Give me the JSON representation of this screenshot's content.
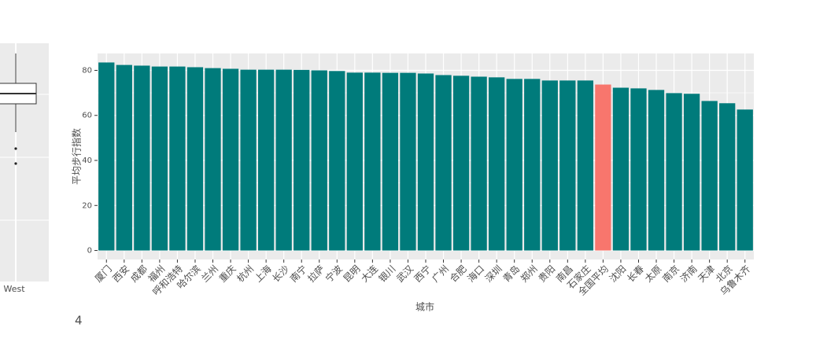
{
  "chart_data": {
    "type": "bar",
    "y_label": "平均步行指数",
    "x_label": "城市",
    "categories": [
      "厦门",
      "西安",
      "成都",
      "福州",
      "呼和浩特",
      "哈尔滨",
      "兰州",
      "重庆",
      "杭州",
      "上海",
      "长沙",
      "南宁",
      "拉萨",
      "宁波",
      "昆明",
      "大连",
      "银川",
      "武汉",
      "西宁",
      "广州",
      "合肥",
      "海口",
      "深圳",
      "青岛",
      "郑州",
      "贵阳",
      "南昌",
      "石家庄",
      "全国平均",
      "沈阳",
      "长春",
      "太原",
      "南京",
      "济南",
      "天津",
      "北京",
      "乌鲁木齐"
    ],
    "values": [
      83.5,
      82.4,
      82.1,
      81.7,
      81.7,
      81.4,
      81.0,
      80.7,
      80.3,
      80.3,
      80.3,
      80.2,
      80.0,
      79.7,
      79.0,
      79.0,
      78.9,
      78.9,
      78.6,
      77.9,
      77.6,
      77.2,
      76.9,
      76.2,
      76.2,
      75.5,
      75.5,
      75.5,
      73.7,
      72.3,
      72.0,
      71.3,
      69.9,
      69.6,
      66.4,
      65.4,
      62.6
    ],
    "colors": [
      "#007b7b",
      "#007b7b",
      "#007b7b",
      "#007b7b",
      "#007b7b",
      "#007b7b",
      "#007b7b",
      "#007b7b",
      "#007b7b",
      "#007b7b",
      "#007b7b",
      "#007b7b",
      "#007b7b",
      "#007b7b",
      "#007b7b",
      "#007b7b",
      "#007b7b",
      "#007b7b",
      "#007b7b",
      "#007b7b",
      "#007b7b",
      "#007b7b",
      "#007b7b",
      "#007b7b",
      "#007b7b",
      "#007b7b",
      "#007b7b",
      "#007b7b",
      "#f8766d",
      "#007b7b",
      "#007b7b",
      "#007b7b",
      "#007b7b",
      "#007b7b",
      "#007b7b",
      "#007b7b",
      "#007b7b"
    ],
    "ylim": [
      -4,
      87.5
    ],
    "yticks": [
      0,
      20,
      40,
      60,
      80
    ],
    "grid": true
  },
  "left_panel": {
    "x_tick_label": "West"
  },
  "page_number": "4"
}
